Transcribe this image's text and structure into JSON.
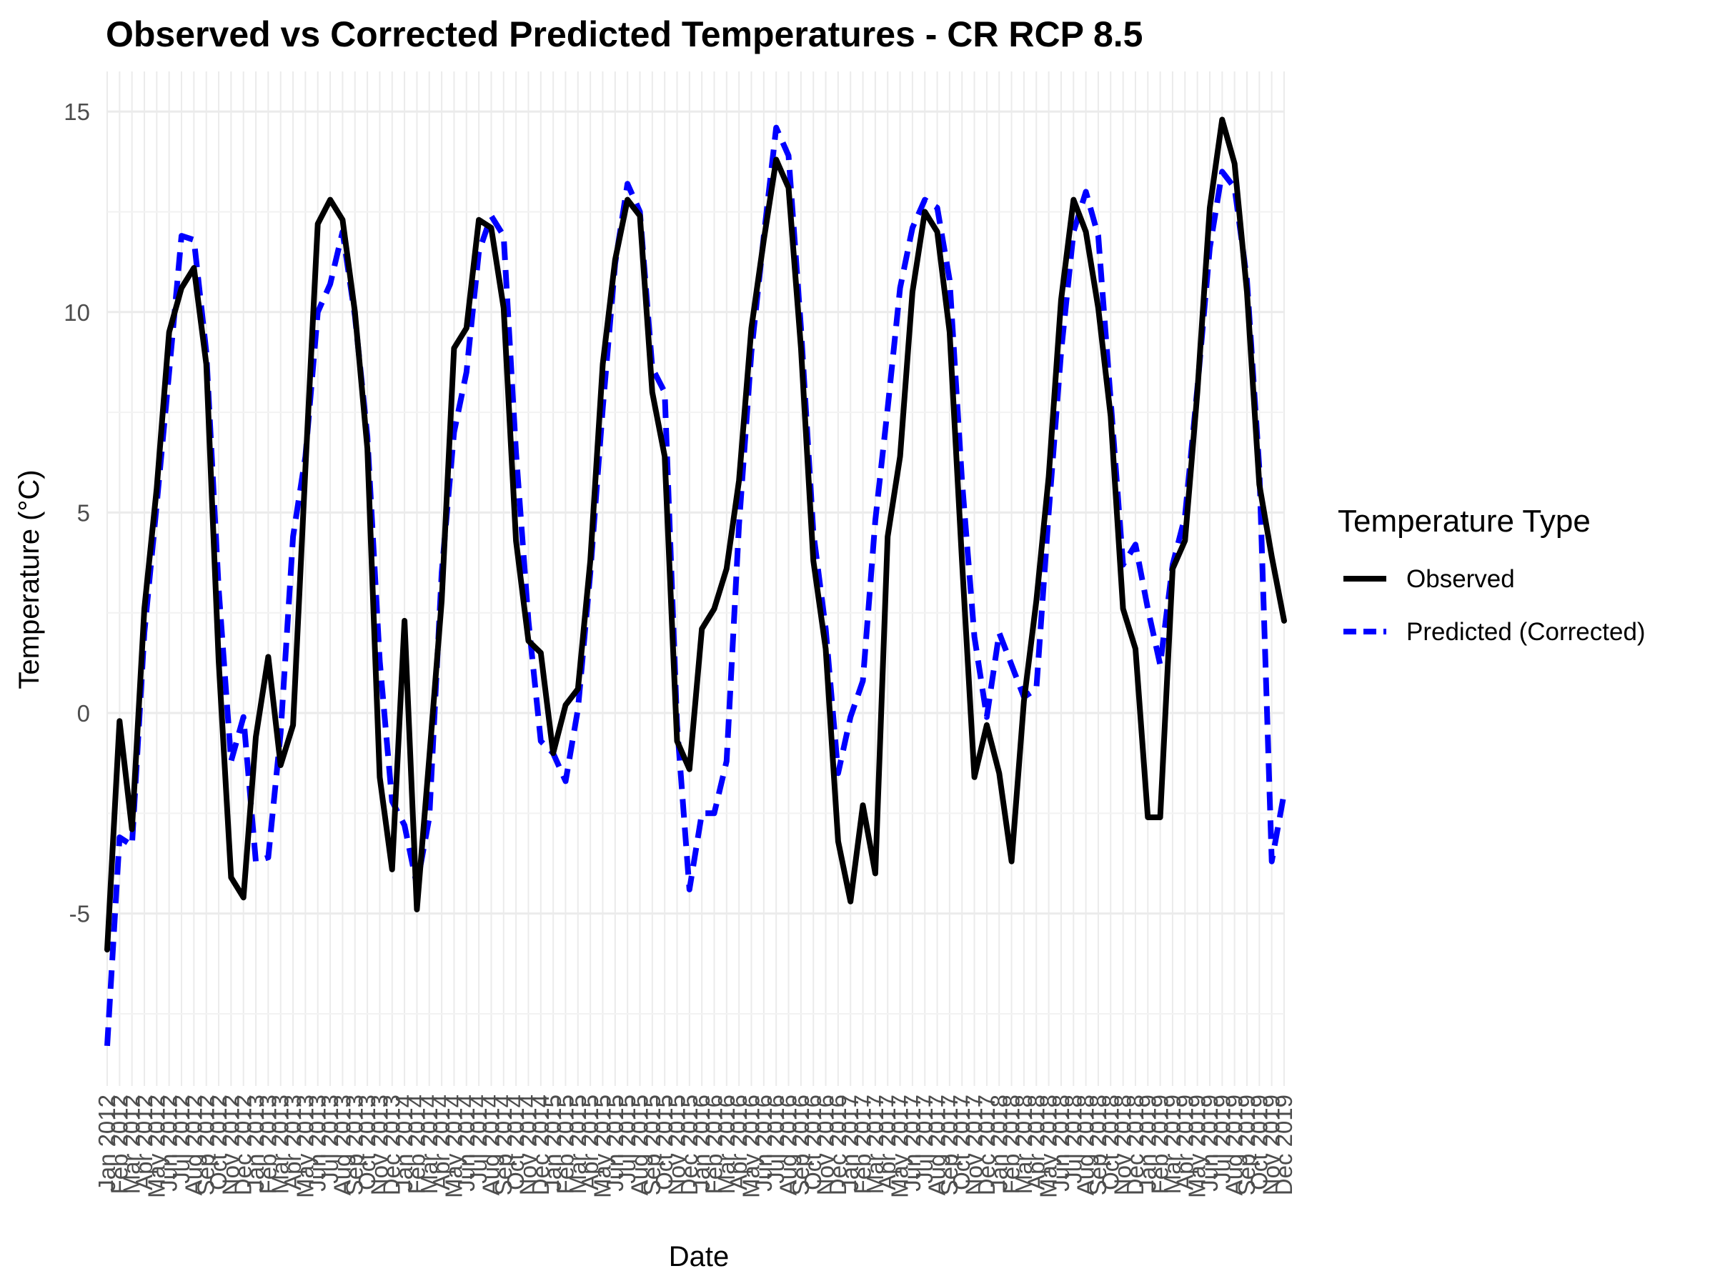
{
  "chart_data": {
    "type": "line",
    "title": "Observed vs Corrected Predicted Temperatures - CR RCP 8.5",
    "xlabel": "Date",
    "ylabel": "Temperature (°C)",
    "ylim": [
      -9.3,
      16
    ],
    "yticks": [
      -5,
      0,
      5,
      10,
      15
    ],
    "ytick_labels": [
      "-5",
      "0",
      "5",
      "10",
      "15"
    ],
    "grid": true,
    "legend": {
      "title": "Temperature Type",
      "position": "right"
    },
    "x": [
      "Jan 2012",
      "Feb 2012",
      "Mar 2012",
      "Apr 2012",
      "May 2012",
      "Jun 2012",
      "Jul 2012",
      "Aug 2012",
      "Sep 2012",
      "Oct 2012",
      "Nov 2012",
      "Dec 2012",
      "Jan 2013",
      "Feb 2013",
      "Mar 2013",
      "Apr 2013",
      "May 2013",
      "Jun 2013",
      "Jul 2013",
      "Aug 2013",
      "Sep 2013",
      "Oct 2013",
      "Nov 2013",
      "Dec 2013",
      "Jan 2014",
      "Feb 2014",
      "Mar 2014",
      "Apr 2014",
      "May 2014",
      "Jun 2014",
      "Jul 2014",
      "Aug 2014",
      "Sep 2014",
      "Oct 2014",
      "Nov 2014",
      "Dec 2014",
      "Jan 2015",
      "Feb 2015",
      "Mar 2015",
      "Apr 2015",
      "May 2015",
      "Jun 2015",
      "Jul 2015",
      "Aug 2015",
      "Sep 2015",
      "Oct 2015",
      "Nov 2015",
      "Dec 2015",
      "Jan 2016",
      "Feb 2016",
      "Mar 2016",
      "Apr 2016",
      "May 2016",
      "Jun 2016",
      "Jul 2016",
      "Aug 2016",
      "Sep 2016",
      "Oct 2016",
      "Nov 2016",
      "Dec 2016",
      "Jan 2017",
      "Feb 2017",
      "Mar 2017",
      "Apr 2017",
      "May 2017",
      "Jun 2017",
      "Jul 2017",
      "Aug 2017",
      "Sep 2017",
      "Oct 2017",
      "Nov 2017",
      "Dec 2017",
      "Jan 2018",
      "Feb 2018",
      "Mar 2018",
      "Apr 2018",
      "May 2018",
      "Jun 2018",
      "Jul 2018",
      "Aug 2018",
      "Sep 2018",
      "Oct 2018",
      "Nov 2018",
      "Dec 2018",
      "Jan 2019",
      "Feb 2019",
      "Mar 2019",
      "Apr 2019",
      "May 2019",
      "Jun 2019",
      "Jul 2019",
      "Aug 2019",
      "Sep 2019",
      "Oct 2019",
      "Nov 2019",
      "Dec 2019"
    ],
    "series": [
      {
        "name": "Observed",
        "color": "#000000",
        "dash": "solid",
        "values": [
          -5.9,
          -0.2,
          -2.9,
          2.6,
          5.6,
          9.5,
          10.6,
          11.1,
          8.7,
          1.3,
          -4.1,
          -4.6,
          -0.6,
          1.4,
          -1.3,
          -0.3,
          6.1,
          12.2,
          12.8,
          12.3,
          10.0,
          6.6,
          -1.6,
          -3.9,
          2.3,
          -4.9,
          -1.1,
          2.8,
          9.1,
          9.6,
          12.3,
          12.1,
          10.1,
          4.3,
          1.8,
          1.5,
          -1.0,
          0.2,
          0.6,
          3.8,
          8.7,
          11.3,
          12.8,
          12.4,
          8.0,
          6.4,
          -0.7,
          -1.4,
          2.1,
          2.6,
          3.6,
          5.8,
          9.6,
          11.8,
          13.8,
          13.1,
          9.1,
          3.8,
          1.6,
          -3.2,
          -4.7,
          -2.3,
          -4.0,
          4.4,
          6.4,
          10.5,
          12.5,
          12.0,
          9.5,
          3.8,
          -1.6,
          -0.3,
          -1.5,
          -3.7,
          0.3,
          2.8,
          5.9,
          10.3,
          12.8,
          12.0,
          10.1,
          7.4,
          2.6,
          1.6,
          -2.6,
          -2.6,
          3.6,
          4.3,
          8.0,
          12.6,
          14.8,
          13.7,
          10.5,
          5.7,
          3.9,
          2.3
        ]
      },
      {
        "name": "Predicted (Corrected)",
        "color": "#0000ff",
        "dash": "dashed",
        "values": [
          -8.3,
          -3.1,
          -3.3,
          2.0,
          5.2,
          8.5,
          11.9,
          11.8,
          9.0,
          3.1,
          -1.2,
          -0.1,
          -3.7,
          -3.6,
          -0.5,
          4.4,
          6.4,
          10.0,
          10.7,
          12.0,
          9.9,
          6.9,
          1.3,
          -2.2,
          -2.8,
          -4.3,
          -2.6,
          3.5,
          7.0,
          8.5,
          11.5,
          12.4,
          11.9,
          6.5,
          2.3,
          -0.7,
          -1.0,
          -1.7,
          0.1,
          3.5,
          7.6,
          11.2,
          13.2,
          12.5,
          8.6,
          8.0,
          -0.3,
          -4.4,
          -2.5,
          -2.5,
          -1.2,
          4.7,
          9.0,
          11.9,
          14.6,
          13.9,
          9.6,
          4.5,
          2.1,
          -1.5,
          -0.1,
          0.8,
          4.8,
          7.6,
          10.6,
          12.1,
          12.8,
          12.6,
          10.8,
          5.8,
          1.9,
          -0.1,
          2.0,
          1.2,
          0.4,
          0.6,
          5.0,
          9.0,
          12.0,
          13.0,
          11.9,
          7.8,
          3.7,
          4.2,
          2.6,
          1.2,
          3.7,
          4.9,
          8.1,
          11.6,
          13.5,
          13.1,
          10.8,
          6.1,
          -3.7,
          -2.0
        ]
      }
    ]
  }
}
